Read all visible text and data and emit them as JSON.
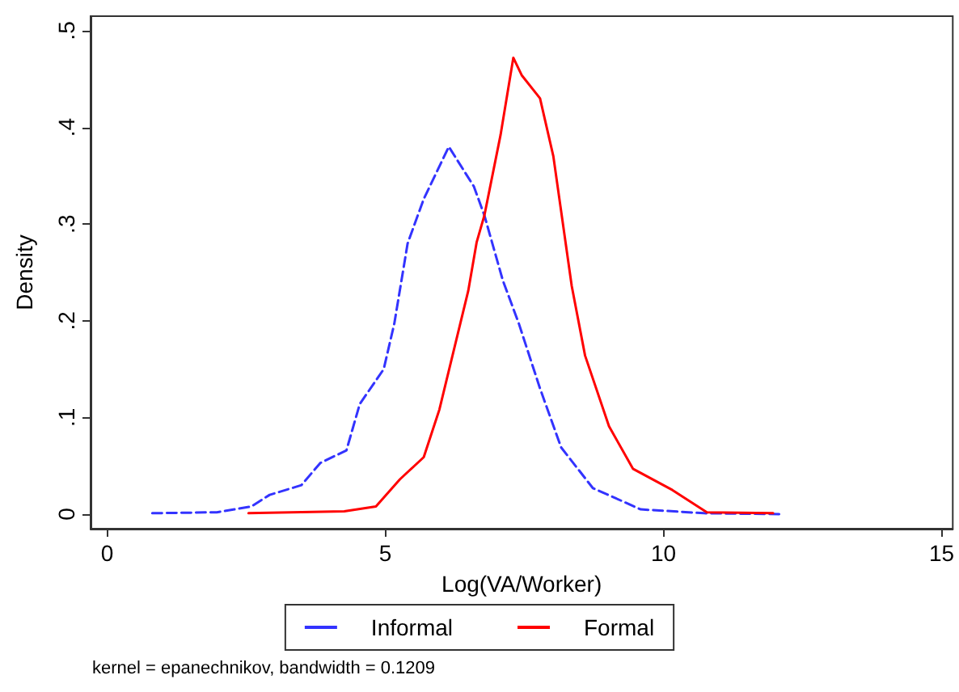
{
  "chart_data": {
    "type": "line",
    "xlabel": "Log(VA/Worker)",
    "ylabel": "Density",
    "annotations": [
      "kernel = epanechnikov, bandwidth = 0.1209"
    ],
    "xlim": [
      -0.3,
      15.2
    ],
    "xticks": [
      0,
      5,
      10,
      15
    ],
    "ylim": [
      -0.015,
      0.515
    ],
    "yticks": [
      0,
      {
        "value": 0.1,
        "label": ".1"
      },
      {
        "value": 0.2,
        "label": ".2"
      },
      {
        "value": 0.3,
        "label": ".3"
      },
      {
        "value": 0.4,
        "label": ".4"
      },
      {
        "value": 0.5,
        "label": ".5"
      }
    ],
    "grid": false,
    "legend": "bottom",
    "marker": "none",
    "series": [
      {
        "name": "Informal",
        "color": "#3333ff",
        "line_style": "dashed",
        "x": [
          0.81,
          1.97,
          2.59,
          2.92,
          3.49,
          3.83,
          4.3,
          4.54,
          4.97,
          5.16,
          5.4,
          5.69,
          6.14,
          6.59,
          6.78,
          7.11,
          7.4,
          7.78,
          8.16,
          8.73,
          9.59,
          10.73,
          12.16
        ],
        "values": [
          0.001,
          0.002,
          0.008,
          0.02,
          0.03,
          0.053,
          0.066,
          0.114,
          0.15,
          0.197,
          0.28,
          0.326,
          0.38,
          0.339,
          0.309,
          0.242,
          0.197,
          0.13,
          0.069,
          0.027,
          0.005,
          0.001,
          0
        ]
      },
      {
        "name": "Formal",
        "color": "#ff0000",
        "line_style": "solid",
        "x": [
          2.54,
          4.26,
          4.83,
          5.26,
          5.69,
          5.97,
          6.49,
          6.64,
          6.78,
          7.07,
          7.3,
          7.45,
          7.78,
          8.02,
          8.35,
          8.59,
          9.02,
          9.45,
          10.16,
          10.78,
          11.97
        ],
        "values": [
          0.001,
          0.003,
          0.008,
          0.036,
          0.059,
          0.108,
          0.231,
          0.281,
          0.309,
          0.392,
          0.472,
          0.454,
          0.43,
          0.37,
          0.236,
          0.164,
          0.091,
          0.047,
          0.025,
          0.002,
          0.001
        ]
      }
    ]
  }
}
